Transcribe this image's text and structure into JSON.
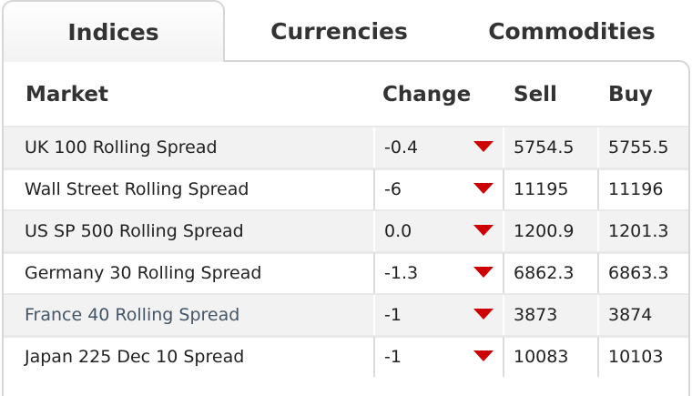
{
  "tabs": [
    {
      "label": "Indices",
      "active": true
    },
    {
      "label": "Currencies",
      "active": false
    },
    {
      "label": "Commodities",
      "active": false
    }
  ],
  "table": {
    "headers": {
      "market": "Market",
      "change": "Change",
      "sell": "Sell",
      "buy": "Buy"
    },
    "rows": [
      {
        "market": "UK 100 Rolling Spread",
        "change": "-0.4",
        "direction": "down",
        "sell": "5754.5",
        "buy": "5755.5"
      },
      {
        "market": "Wall Street Rolling Spread",
        "change": "-6",
        "direction": "down",
        "sell": "11195",
        "buy": "11196"
      },
      {
        "market": "US SP 500 Rolling Spread",
        "change": "0.0",
        "direction": "down",
        "sell": "1200.9",
        "buy": "1201.3"
      },
      {
        "market": "Germany 30 Rolling Spread",
        "change": "-1.3",
        "direction": "down",
        "sell": "6862.3",
        "buy": "6863.3"
      },
      {
        "market": "France 40 Rolling Spread",
        "change": "-1",
        "direction": "down",
        "sell": "3873",
        "buy": "3874"
      },
      {
        "market": "Japan 225 Dec 10 Spread",
        "change": "-1",
        "direction": "down",
        "sell": "10083",
        "buy": "10103"
      }
    ]
  },
  "colors": {
    "down_arrow": "#cc0000",
    "alt_row_bg": "#f2f2f2",
    "border": "#d6d6d6"
  },
  "icons": {
    "change_direction": "down-triangle-icon"
  }
}
